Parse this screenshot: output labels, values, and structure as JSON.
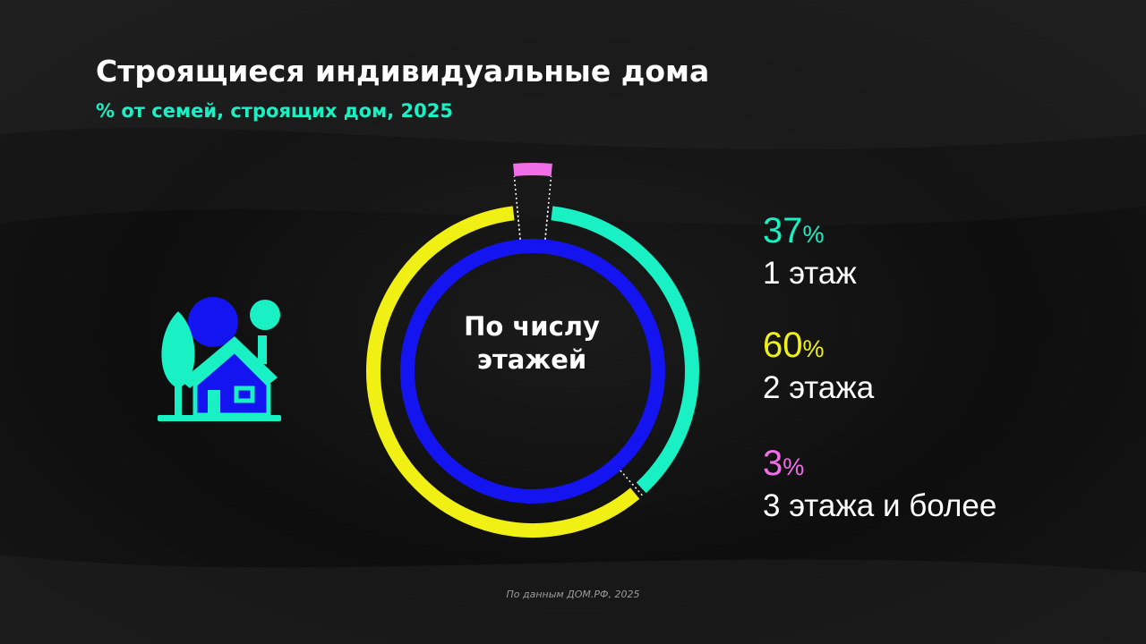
{
  "title": "Строящиеся индивидуальные дома",
  "subtitle": "% от семей, строящих дом, 2025",
  "center_label": "По числу этажей",
  "source": "По данным ДОМ.РФ, 2025",
  "icon": "house-with-trees-icon",
  "colors": {
    "background": "#121212",
    "subtitle": "#19f0c4",
    "inner_ring": "#1414f0",
    "text": "#ffffff"
  },
  "chart_data": {
    "type": "pie",
    "title": "Строящиеся индивидуальные дома",
    "subtitle": "% от семей, строящих дом, 2025",
    "unit": "%",
    "slices": [
      {
        "label": "1 этаж",
        "value": 37,
        "percent_text": "37",
        "percent_sign": "%",
        "color": "#19f0c4"
      },
      {
        "label": "2 этажа",
        "value": 60,
        "percent_text": "60",
        "percent_sign": "%",
        "color": "#f0f014"
      },
      {
        "label": "3 этажа и более",
        "value": 3,
        "percent_text": "3",
        "percent_sign": "%",
        "color": "#f26ee8"
      }
    ],
    "legend_position": "right"
  }
}
